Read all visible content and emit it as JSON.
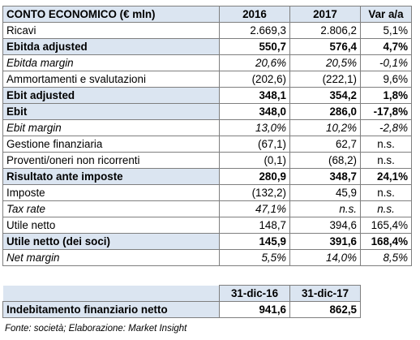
{
  "header": {
    "title": "CONTO ECONOMICO (€ mln)",
    "col1": "2016",
    "col2": "2017",
    "col3": "Var a/a"
  },
  "rows": [
    {
      "label": "Ricavi",
      "v2016": "2.669,3",
      "v2017": "2.806,2",
      "var": "5,1%",
      "style": "normal"
    },
    {
      "label": "Ebitda adjusted",
      "v2016": "550,7",
      "v2017": "576,4",
      "var": "4,7%",
      "style": "bold"
    },
    {
      "label": "Ebitda margin",
      "v2016": "20,6%",
      "v2017": "20,5%",
      "var": "-0,1%",
      "style": "italic"
    },
    {
      "label": "Ammortamenti e svalutazioni",
      "v2016": "(202,6)",
      "v2017": "(222,1)",
      "var": "9,6%",
      "style": "normal"
    },
    {
      "label": "Ebit adjusted",
      "v2016": "348,1",
      "v2017": "354,2",
      "var": "1,8%",
      "style": "bold"
    },
    {
      "label": "Ebit",
      "v2016": "348,0",
      "v2017": "286,0",
      "var": "-17,8%",
      "style": "bold"
    },
    {
      "label": "Ebit margin",
      "v2016": "13,0%",
      "v2017": "10,2%",
      "var": "-2,8%",
      "style": "italic"
    },
    {
      "label": "Gestione finanziaria",
      "v2016": "(67,1)",
      "v2017": "62,7",
      "var": "n.s.",
      "style": "normal"
    },
    {
      "label": "Proventi/oneri non ricorrenti",
      "v2016": "(0,1)",
      "v2017": "(68,2)",
      "var": "n.s.",
      "style": "normal"
    },
    {
      "label": "Risultato ante imposte",
      "v2016": "280,9",
      "v2017": "348,7",
      "var": "24,1%",
      "style": "bold"
    },
    {
      "label": "Imposte",
      "v2016": "(132,2)",
      "v2017": "45,9",
      "var": "n.s.",
      "style": "normal"
    },
    {
      "label": "Tax rate",
      "v2016": "47,1%",
      "v2017": "n.s.",
      "var": "n.s.",
      "style": "italic"
    },
    {
      "label": "Utile netto",
      "v2016": "148,7",
      "v2017": "394,6",
      "var": "165,4%",
      "style": "normal"
    },
    {
      "label": "Utile netto (dei soci)",
      "v2016": "145,9",
      "v2017": "391,6",
      "var": "168,4%",
      "style": "bold"
    },
    {
      "label": "Net margin",
      "v2016": "5,5%",
      "v2017": "14,0%",
      "var": "8,5%",
      "style": "italic"
    }
  ],
  "debt": {
    "col1": "31-dic-16",
    "col2": "31-dic-17",
    "label": "Indebitamento finanziario netto",
    "v1": "941,6",
    "v2": "862,5"
  },
  "source": "Fonte: società; Elaborazione: Market Insight"
}
